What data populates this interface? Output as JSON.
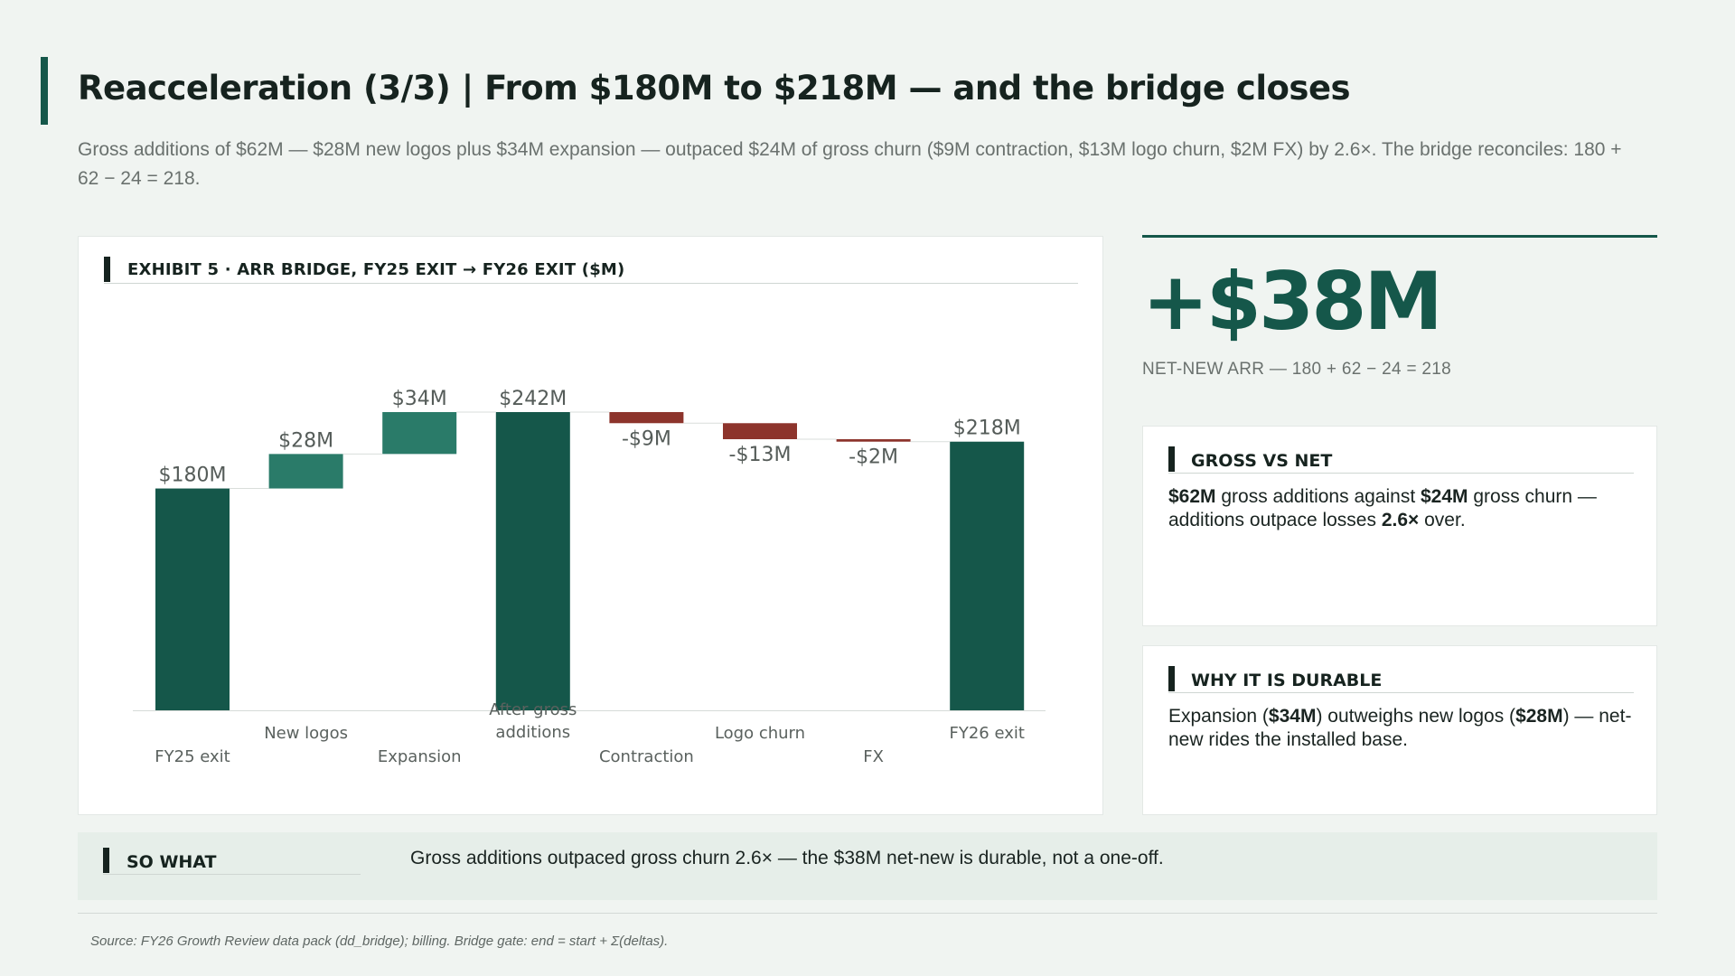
{
  "header": {
    "title": "Reacceleration (3/3)  |  From $180M to $218M — and the bridge closes",
    "subtitle": "Gross additions of $62M — $28M new logos plus $34M expansion — outpaced $24M of gross churn ($9M contraction, $13M logo churn, $2M FX) by 2.6×. The bridge reconciles: 180 + 62 − 24 = 218."
  },
  "exhibit": {
    "label": "EXHIBIT 5 · ARR BRIDGE, FY25 EXIT → FY26 EXIT ($M)"
  },
  "chart_data": {
    "type": "waterfall",
    "categories": [
      "FY25 exit",
      "New logos",
      "Expansion",
      "After gross additions",
      "Contraction",
      "Logo churn",
      "FX",
      "FY26 exit"
    ],
    "category_lines": [
      [
        "FY25 exit"
      ],
      [
        "New logos"
      ],
      [
        "Expansion"
      ],
      [
        "After gross",
        "additions"
      ],
      [
        "Contraction"
      ],
      [
        "Logo churn"
      ],
      [
        "FX"
      ],
      [
        "FY26 exit"
      ]
    ],
    "kinds": [
      "total",
      "increase",
      "increase",
      "total",
      "decrease",
      "decrease",
      "decrease",
      "total"
    ],
    "values": [
      180,
      28,
      34,
      242,
      -9,
      -13,
      -2,
      218
    ],
    "data_labels": [
      "$180M",
      "$28M",
      "$34M",
      "$242M",
      "-$9M",
      "-$13M",
      "-$2M",
      "$218M"
    ],
    "ylim": [
      0,
      242
    ],
    "grid": false,
    "colors": {
      "total": "#15574a",
      "increase": "#2a7b69",
      "decrease": "#8d342c",
      "connector": "#d9dedb",
      "axis": "#d6dbd8",
      "label": "#555c59"
    }
  },
  "kpi": {
    "value": "+$38M",
    "caption": "NET-NEW ARR — 180 + 62 − 24 = 218"
  },
  "cards": {
    "gross_vs_net": {
      "title": "GROSS VS NET",
      "b1": "$62M",
      "t1": " gross additions against ",
      "b2": "$24M",
      "t2": " gross churn — additions outpace losses ",
      "b3": "2.6×",
      "t3": " over."
    },
    "durable": {
      "title": "WHY IT IS DURABLE",
      "t1": "Expansion (",
      "b1": "$34M",
      "t2": ") outweighs new logos (",
      "b2": "$28M",
      "t3": ") — net-new rides the installed base."
    }
  },
  "so_what": {
    "title": "SO WHAT",
    "text": "Gross additions outpaced gross churn 2.6× — the $38M net-new is durable, not a one-off."
  },
  "source": "Source: FY26 Growth Review data pack (dd_bridge); billing. Bridge gate: end = start + Σ(deltas)."
}
